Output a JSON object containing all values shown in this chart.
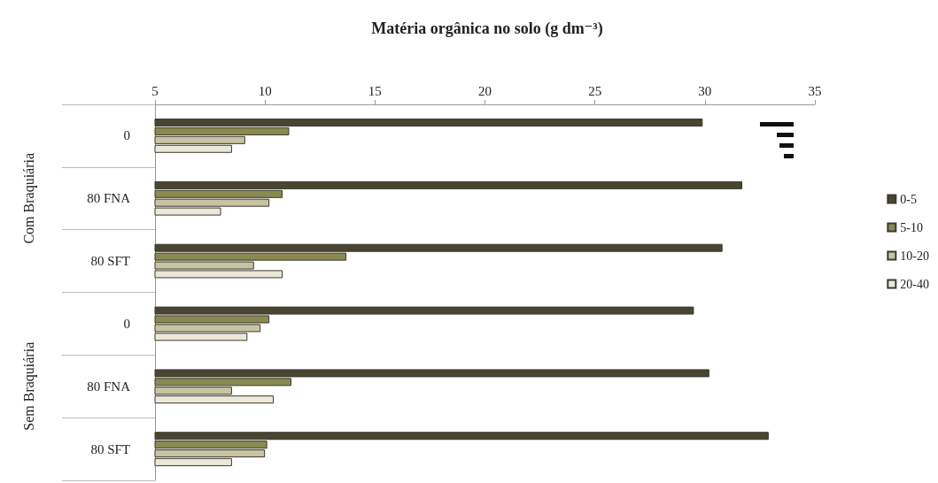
{
  "chart_data": {
    "type": "bar",
    "orientation": "horizontal",
    "title": "Matéria orgânica no solo (g dm⁻³)",
    "categories": [
      "0",
      "80 FNA",
      "80 SFT",
      "0",
      "80 FNA",
      "80 SFT"
    ],
    "annotations": [
      "Com Braquiária",
      "Sem Braquiária"
    ],
    "series": [
      {
        "name": "0-5",
        "color": "#4a4530",
        "values": [
          29.9,
          31.7,
          30.8,
          29.5,
          30.2,
          32.9
        ]
      },
      {
        "name": "5-10",
        "color": "#8a8a50",
        "values": [
          11.1,
          10.8,
          13.7,
          10.2,
          11.2,
          10.1
        ]
      },
      {
        "name": "10-20",
        "color": "#c8c3a0",
        "values": [
          9.1,
          10.2,
          9.5,
          9.8,
          8.5,
          10.0
        ]
      },
      {
        "name": "20-40",
        "color": "#ebe8d8",
        "values": [
          8.5,
          8.0,
          10.8,
          9.2,
          10.4,
          8.5
        ]
      }
    ],
    "xlim": [
      5,
      35
    ],
    "xticks": [
      5,
      10,
      15,
      20,
      25,
      30,
      35
    ],
    "grid": false,
    "legend": "right"
  }
}
